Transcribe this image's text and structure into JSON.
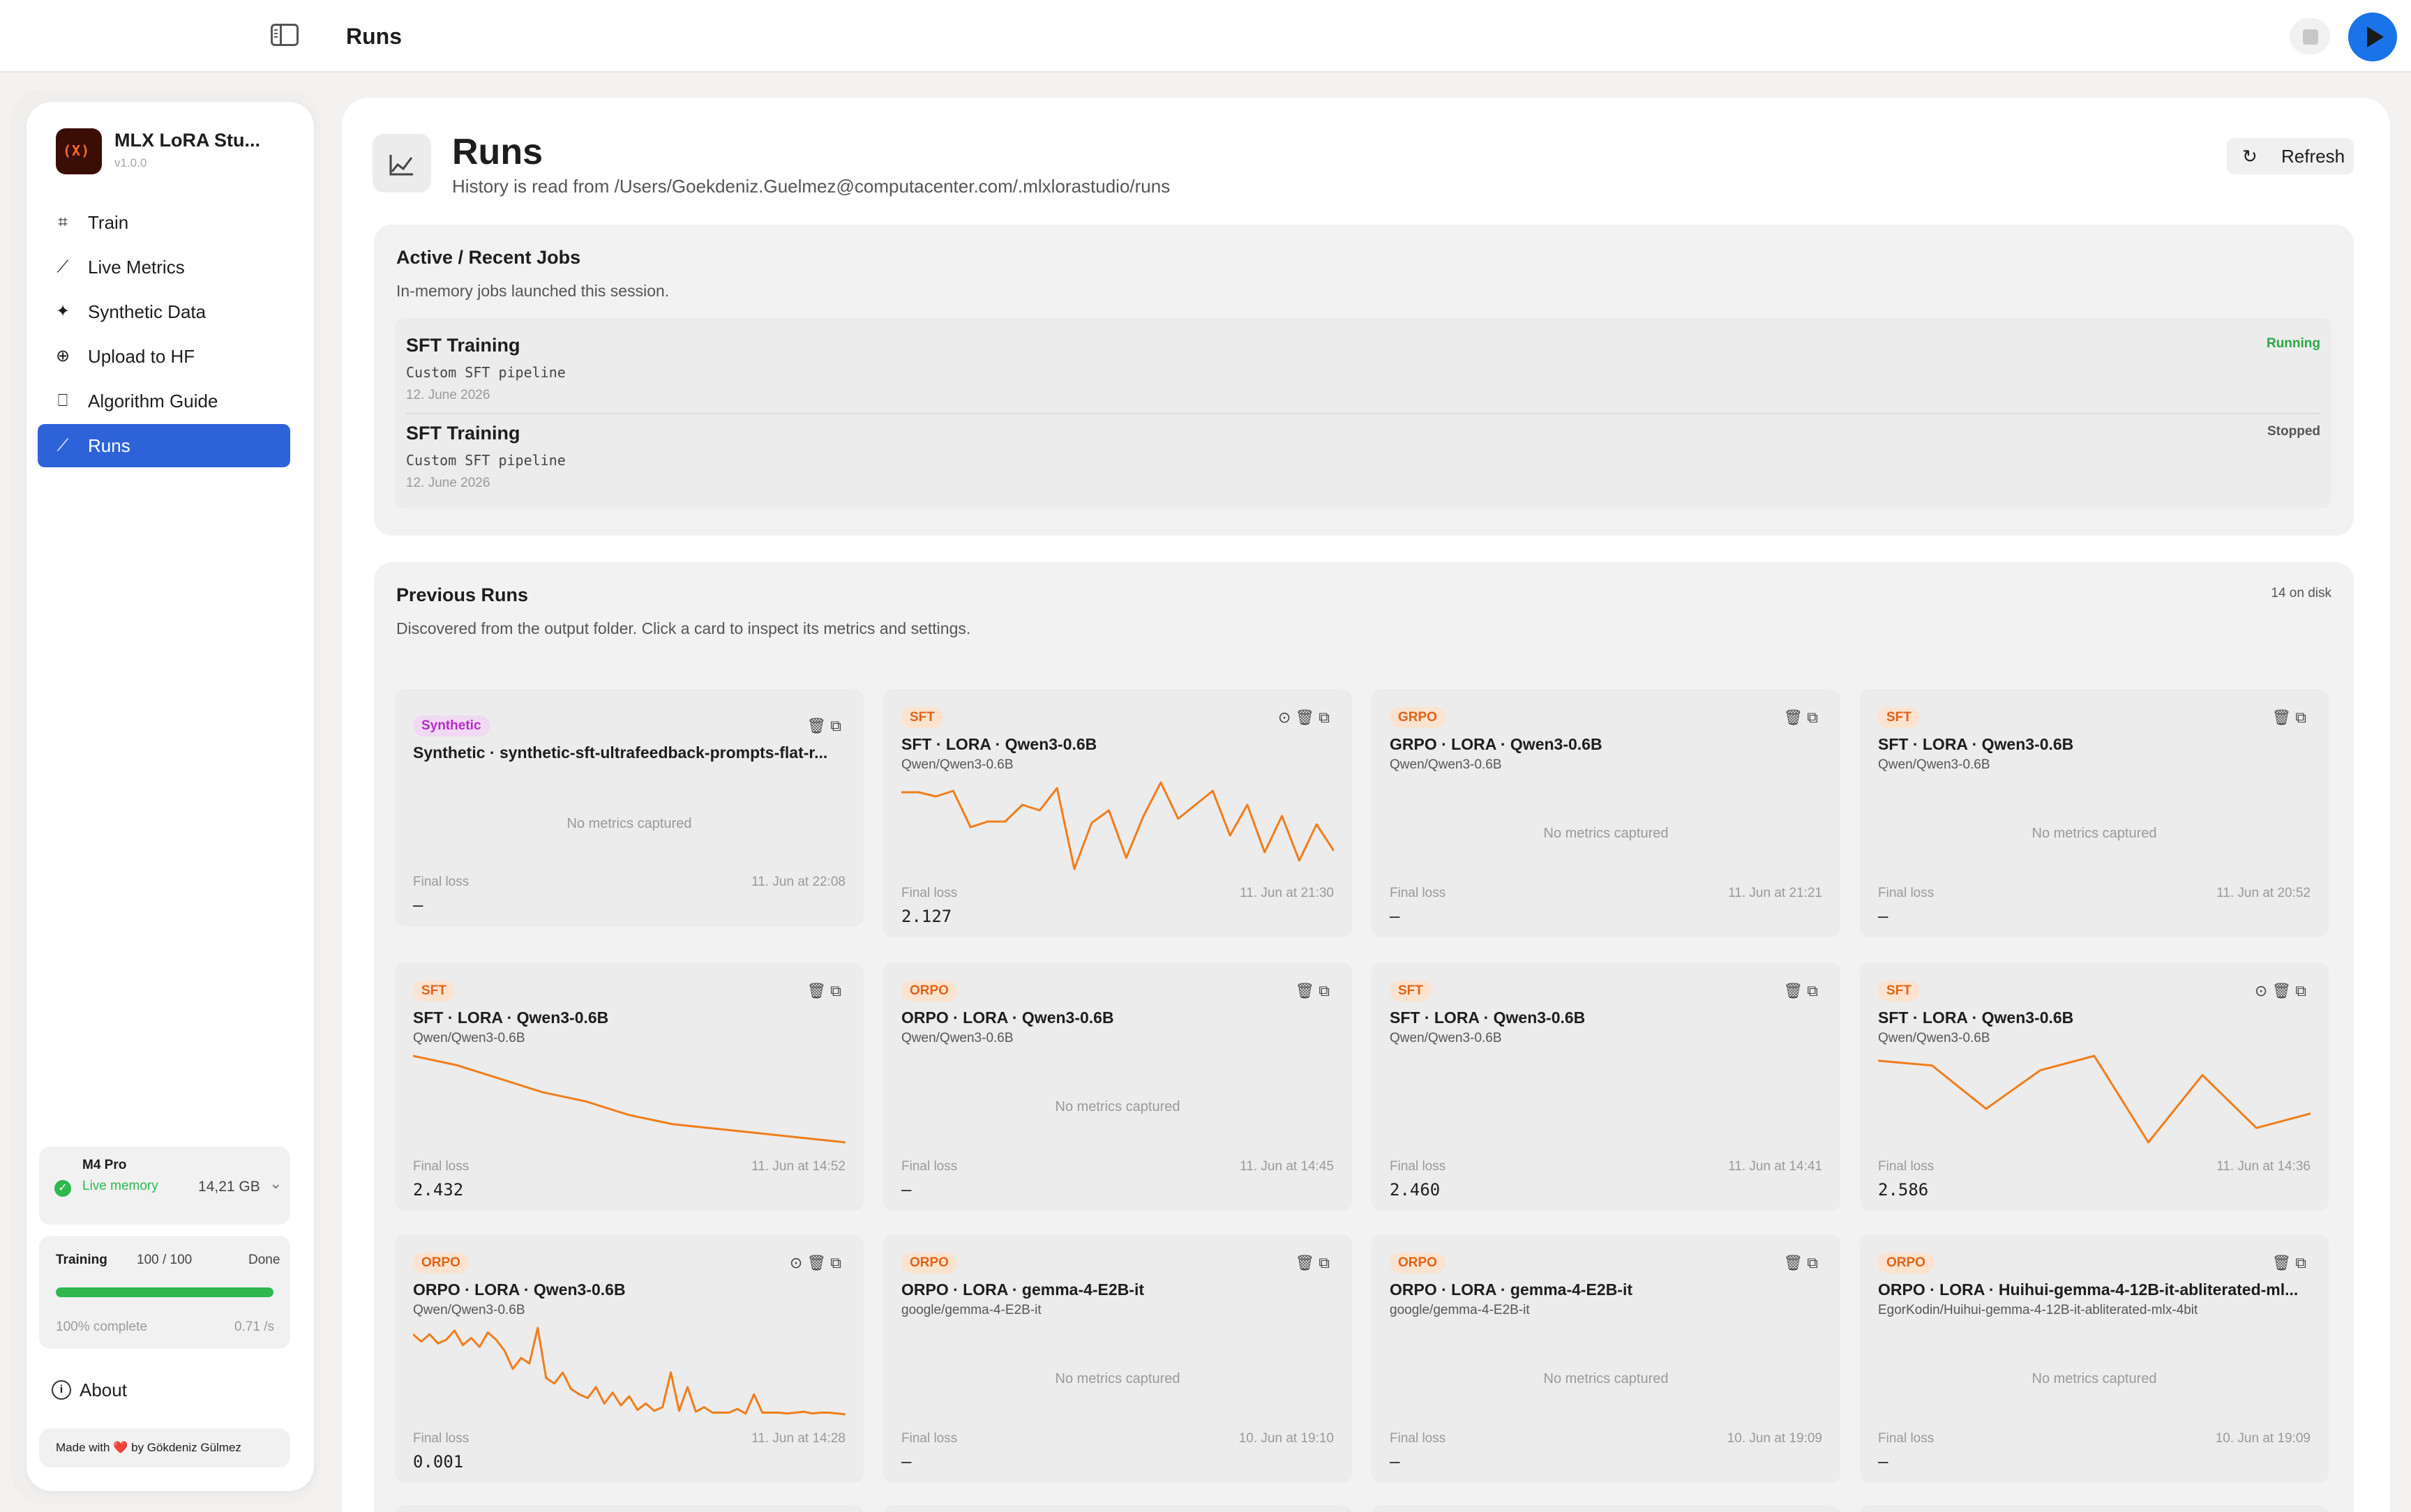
{
  "window": {
    "title": "Runs"
  },
  "app": {
    "name": "MLX LoRA Stu...",
    "version": "v1.0.0",
    "logo_text": "(X)"
  },
  "nav": {
    "items": [
      {
        "label": "Train",
        "icon": "cpu-icon"
      },
      {
        "label": "Live Metrics",
        "icon": "chart-line-icon"
      },
      {
        "label": "Synthetic Data",
        "icon": "sparkles-icon"
      },
      {
        "label": "Upload to HF",
        "icon": "upload-circle-icon"
      },
      {
        "label": "Algorithm Guide",
        "icon": "book-icon"
      },
      {
        "label": "Runs",
        "icon": "chart-line-icon",
        "active": true
      }
    ]
  },
  "device": {
    "name": "M4 Pro",
    "status": "Live memory",
    "memory": "14,21 GB"
  },
  "training": {
    "label": "Training",
    "count": "100 / 100",
    "status": "Done",
    "progress": 1.0,
    "percent_text": "100% complete",
    "rate": "0.71 /s"
  },
  "about": {
    "label": "About"
  },
  "footer": {
    "made_with": "Made with",
    "heart": "❤️",
    "by": "by Gökdeniz Gülmez"
  },
  "page": {
    "title": "Runs",
    "subtitle": "History is read from /Users/Goekdeniz.Guelmez@computacenter.com/.mlxlorastudio/runs",
    "refresh_label": "Refresh"
  },
  "active_jobs": {
    "title": "Active / Recent Jobs",
    "subtitle": "In-memory jobs launched this session.",
    "jobs": [
      {
        "name": "SFT Training",
        "desc": "Custom SFT pipeline",
        "date": "12. June 2026",
        "status": "Running"
      },
      {
        "name": "SFT Training",
        "desc": "Custom SFT pipeline",
        "date": "12. June 2026",
        "status": "Stopped"
      }
    ]
  },
  "previous_runs": {
    "title": "Previous Runs",
    "subtitle": "Discovered from the output folder. Click a card to inspect its metrics and settings.",
    "count": "14 on disk",
    "final_loss_label": "Final loss",
    "no_metrics_label": "No metrics captured",
    "runs": [
      {
        "badge": "Synthetic",
        "title": "Synthetic · synthetic-sft-ultrafeedback-prompts-flat-r...",
        "model": "",
        "final_loss": "–",
        "time": "11. Jun at 22:08",
        "loss": []
      },
      {
        "badge": "SFT",
        "title": "SFT · LORA · Qwen3-0.6B",
        "model": "Qwen/Qwen3-0.6B",
        "final_loss": "2.127",
        "time": "11. Jun at 21:30",
        "loss": [
          2.55,
          2.55,
          2.52,
          2.56,
          2.3,
          2.34,
          2.34,
          2.46,
          2.42,
          2.58,
          2.0,
          2.33,
          2.42,
          2.08,
          2.38,
          2.62,
          2.36,
          2.46,
          2.56,
          2.24,
          2.46,
          2.12,
          2.38,
          2.06,
          2.32,
          2.13
        ]
      },
      {
        "badge": "GRPO",
        "title": "GRPO · LORA · Qwen3-0.6B",
        "model": "Qwen/Qwen3-0.6B",
        "final_loss": "–",
        "time": "11. Jun at 21:21",
        "loss": []
      },
      {
        "badge": "SFT",
        "title": "SFT · LORA · Qwen3-0.6B",
        "model": "Qwen/Qwen3-0.6B",
        "final_loss": "–",
        "time": "11. Jun at 20:52",
        "loss": []
      },
      {
        "badge": "SFT",
        "title": "SFT · LORA · Qwen3-0.6B",
        "model": "Qwen/Qwen3-0.6B",
        "final_loss": "2.432",
        "time": "11. Jun at 14:52",
        "loss": [
          2.62,
          2.6,
          2.57,
          2.54,
          2.52,
          2.49,
          2.47,
          2.46,
          2.45,
          2.44,
          2.43
        ]
      },
      {
        "badge": "ORPO",
        "title": "ORPO · LORA · Qwen3-0.6B",
        "model": "Qwen/Qwen3-0.6B",
        "final_loss": "–",
        "time": "11. Jun at 14:45",
        "loss": []
      },
      {
        "badge": "SFT",
        "title": "SFT · LORA · Qwen3-0.6B",
        "model": "Qwen/Qwen3-0.6B",
        "final_loss": "2.460",
        "time": "11. Jun at 14:41",
        "loss": []
      },
      {
        "badge": "SFT",
        "title": "SFT · LORA · Qwen3-0.6B",
        "model": "Qwen/Qwen3-0.6B",
        "final_loss": "2.586",
        "time": "11. Jun at 14:36",
        "loss": [
          2.7,
          2.69,
          2.6,
          2.68,
          2.71,
          2.53,
          2.67,
          2.56,
          2.59
        ]
      },
      {
        "badge": "ORPO",
        "title": "ORPO · LORA · Qwen3-0.6B",
        "model": "Qwen/Qwen3-0.6B",
        "final_loss": "0.001",
        "time": "11. Jun at 14:28",
        "loss": [
          0.88,
          0.8,
          0.88,
          0.78,
          0.82,
          0.92,
          0.76,
          0.84,
          0.74,
          0.9,
          0.82,
          0.7,
          0.5,
          0.62,
          0.56,
          0.95,
          0.4,
          0.34,
          0.46,
          0.28,
          0.22,
          0.18,
          0.3,
          0.12,
          0.24,
          0.1,
          0.2,
          0.05,
          0.12,
          0.04,
          0.08,
          0.46,
          0.04,
          0.3,
          0.03,
          0.08,
          0.02,
          0.02,
          0.02,
          0.06,
          0.01,
          0.22,
          0.02,
          0.02,
          0.02,
          0.01,
          0.02,
          0.03,
          0.01,
          0.02,
          0.02,
          0.01,
          0.001
        ]
      },
      {
        "badge": "ORPO",
        "title": "ORPO · LORA · gemma-4-E2B-it",
        "model": "google/gemma-4-E2B-it",
        "final_loss": "–",
        "time": "10. Jun at 19:10",
        "loss": []
      },
      {
        "badge": "ORPO",
        "title": "ORPO · LORA · gemma-4-E2B-it",
        "model": "google/gemma-4-E2B-it",
        "final_loss": "–",
        "time": "10. Jun at 19:09",
        "loss": []
      },
      {
        "badge": "ORPO",
        "title": "ORPO · LORA · Huihui-gemma-4-12B-it-abliterated-ml...",
        "model": "EgorKodin/Huihui-gemma-4-12B-it-abliterated-mlx-4bit",
        "final_loss": "–",
        "time": "10. Jun at 19:09",
        "loss": []
      }
    ]
  },
  "colors": {
    "accent": "#2e62d9",
    "run_line": "#f07d1a",
    "running": "#28a745",
    "play": "#1a73e8"
  }
}
